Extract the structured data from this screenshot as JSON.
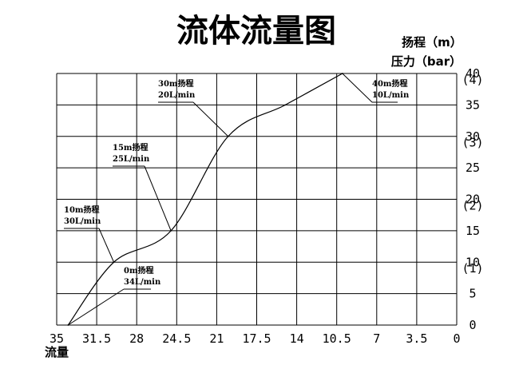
{
  "chart_data": {
    "type": "line",
    "title": "流体流量图",
    "xlabel": "流量",
    "ylabel_head": "扬程（m）",
    "ylabel_pressure": "压力（bar）",
    "x_ticks": [
      "35",
      "31.5",
      "28",
      "24.5",
      "21",
      "17.5",
      "14",
      "10.5",
      "7",
      "3.5",
      "0"
    ],
    "y_ticks": [
      "0",
      "5",
      "10",
      "15",
      "20",
      "25",
      "30",
      "35",
      "40"
    ],
    "pressure_ticks": [
      "(1)",
      "(2)",
      "(3)",
      "(4)"
    ],
    "xlim": [
      35,
      0
    ],
    "ylim": [
      0,
      40
    ],
    "grid": true,
    "series": [
      {
        "x": [
          34,
          30,
          25,
          20,
          15,
          10
        ],
        "y": [
          0,
          10,
          15,
          30,
          35,
          40
        ]
      }
    ],
    "annotations": [
      {
        "line1": "0m扬程",
        "line2": "34L/min",
        "x": 34,
        "y": 0
      },
      {
        "line1": "10m扬程",
        "line2": "30L/min",
        "x": 30,
        "y": 10
      },
      {
        "line1": "15m扬程",
        "line2": "25L/min",
        "x": 25,
        "y": 15
      },
      {
        "line1": "30m扬程",
        "line2": "20L/min",
        "x": 20,
        "y": 30
      },
      {
        "line1": "40m扬程",
        "line2": "10L/min",
        "x": 10,
        "y": 40
      }
    ]
  }
}
